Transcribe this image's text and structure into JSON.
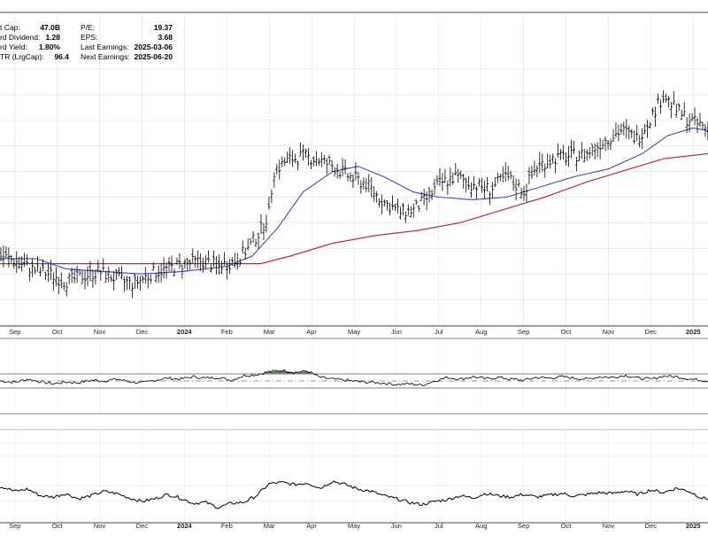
{
  "stats_left": [
    {
      "label": "t Cap:",
      "value": "47.0B"
    },
    {
      "label": "rd Dividend:",
      "value": "1.28"
    },
    {
      "label": "rd Yield:",
      "value": "1.80%"
    },
    {
      "label": "TR (LrgCap):",
      "value": "96.4"
    }
  ],
  "stats_right": [
    {
      "label": "P/E:",
      "value": "19.37"
    },
    {
      "label": "EPS:",
      "value": "3.68"
    },
    {
      "label": "Last Earnings:",
      "value": "2025-03-06"
    },
    {
      "label": "Next Earnings:",
      "value": "2025-06-20"
    }
  ],
  "chart_data": [
    {
      "type": "ohlc",
      "x_tick_labels": [
        "Sep",
        "Oct",
        "Nov",
        "Dec",
        "2024",
        "Feb",
        "Mar",
        "Apr",
        "May",
        "Jun",
        "Jul",
        "Aug",
        "Sep",
        "Oct",
        "Nov",
        "Dec",
        "2025"
      ],
      "x_tick_positions_month_index": [
        0,
        1,
        2,
        3,
        4,
        5,
        6,
        7,
        8,
        9,
        10,
        11,
        12,
        13,
        14,
        15,
        16
      ],
      "x_range_months": [
        -0.35,
        16.35
      ],
      "y_range": [
        0,
        100
      ],
      "price_relative": [
        [
          -0.3,
          27
        ],
        [
          0,
          25
        ],
        [
          0.4,
          22
        ],
        [
          0.8,
          20
        ],
        [
          1.2,
          17
        ],
        [
          1.6,
          19
        ],
        [
          2.0,
          21
        ],
        [
          2.4,
          18
        ],
        [
          2.8,
          16
        ],
        [
          3.2,
          20
        ],
        [
          3.6,
          22
        ],
        [
          4.0,
          24
        ],
        [
          4.4,
          25
        ],
        [
          4.8,
          23
        ],
        [
          5.2,
          25
        ],
        [
          5.5,
          30
        ],
        [
          5.8,
          37
        ],
        [
          6.0,
          44
        ],
        [
          6.1,
          60
        ],
        [
          6.4,
          64
        ],
        [
          6.8,
          66
        ],
        [
          7.1,
          65
        ],
        [
          7.5,
          62
        ],
        [
          7.9,
          58
        ],
        [
          8.3,
          55
        ],
        [
          8.7,
          48
        ],
        [
          9.1,
          44
        ],
        [
          9.4,
          45
        ],
        [
          9.7,
          49
        ],
        [
          10.0,
          55
        ],
        [
          10.4,
          58
        ],
        [
          10.8,
          55
        ],
        [
          11.2,
          53
        ],
        [
          11.6,
          58
        ],
        [
          12.0,
          52
        ],
        [
          12.3,
          62
        ],
        [
          12.7,
          65
        ],
        [
          13.1,
          66
        ],
        [
          13.5,
          67
        ],
        [
          13.9,
          72
        ],
        [
          14.3,
          76
        ],
        [
          14.7,
          73
        ],
        [
          15.0,
          81
        ],
        [
          15.3,
          90
        ],
        [
          15.6,
          84
        ],
        [
          15.9,
          80
        ],
        [
          16.2,
          78
        ],
        [
          16.35,
          76
        ]
      ],
      "ma50_relative": [
        [
          -0.35,
          26
        ],
        [
          0.5,
          26
        ],
        [
          1.2,
          22
        ],
        [
          2.0,
          21
        ],
        [
          3.0,
          20
        ],
        [
          4.0,
          21
        ],
        [
          5.0,
          23
        ],
        [
          5.6,
          27
        ],
        [
          6.2,
          38
        ],
        [
          6.8,
          52
        ],
        [
          7.5,
          60
        ],
        [
          8.1,
          62
        ],
        [
          8.7,
          58
        ],
        [
          9.4,
          52
        ],
        [
          10.0,
          50
        ],
        [
          10.8,
          49
        ],
        [
          11.6,
          50
        ],
        [
          12.4,
          54
        ],
        [
          13.2,
          58
        ],
        [
          14.0,
          61
        ],
        [
          14.8,
          67
        ],
        [
          15.4,
          74
        ],
        [
          16.0,
          77
        ],
        [
          16.35,
          76
        ]
      ],
      "ma200_relative": [
        [
          -0.35,
          24
        ],
        [
          1.0,
          24
        ],
        [
          2.0,
          24
        ],
        [
          3.0,
          24
        ],
        [
          4.0,
          24
        ],
        [
          5.0,
          24
        ],
        [
          5.8,
          24
        ],
        [
          6.5,
          27
        ],
        [
          7.5,
          32
        ],
        [
          8.5,
          35
        ],
        [
          9.5,
          37
        ],
        [
          10.5,
          40
        ],
        [
          11.5,
          45
        ],
        [
          12.5,
          50
        ],
        [
          13.5,
          56
        ],
        [
          14.5,
          61
        ],
        [
          15.3,
          65
        ],
        [
          16.35,
          67
        ]
      ],
      "colors": {
        "price": "#000000",
        "ma50": "#3a4bb5",
        "ma200": "#b33040"
      }
    },
    {
      "type": "line",
      "panel": "oscillator",
      "x_range_months": [
        -0.35,
        16.35
      ],
      "y_range": [
        0,
        100
      ],
      "reference_levels": [
        70,
        50,
        30
      ],
      "values": [
        [
          -0.3,
          50
        ],
        [
          0,
          46
        ],
        [
          0.3,
          55
        ],
        [
          0.6,
          48
        ],
        [
          0.9,
          42
        ],
        [
          1.2,
          47
        ],
        [
          1.5,
          45
        ],
        [
          1.8,
          52
        ],
        [
          2.1,
          50
        ],
        [
          2.4,
          55
        ],
        [
          2.7,
          48
        ],
        [
          3.0,
          44
        ],
        [
          3.3,
          52
        ],
        [
          3.6,
          58
        ],
        [
          3.9,
          55
        ],
        [
          4.2,
          62
        ],
        [
          4.5,
          58
        ],
        [
          4.8,
          60
        ],
        [
          5.1,
          52
        ],
        [
          5.4,
          65
        ],
        [
          5.7,
          68
        ],
        [
          6.0,
          76
        ],
        [
          6.3,
          80
        ],
        [
          6.6,
          74
        ],
        [
          6.9,
          78
        ],
        [
          7.2,
          60
        ],
        [
          7.5,
          55
        ],
        [
          7.8,
          52
        ],
        [
          8.1,
          48
        ],
        [
          8.4,
          46
        ],
        [
          8.7,
          44
        ],
        [
          9.0,
          40
        ],
        [
          9.3,
          42
        ],
        [
          9.6,
          38
        ],
        [
          9.9,
          50
        ],
        [
          10.2,
          60
        ],
        [
          10.5,
          55
        ],
        [
          10.8,
          62
        ],
        [
          11.1,
          56
        ],
        [
          11.4,
          60
        ],
        [
          11.7,
          55
        ],
        [
          12.0,
          52
        ],
        [
          12.3,
          60
        ],
        [
          12.6,
          58
        ],
        [
          12.9,
          62
        ],
        [
          13.2,
          58
        ],
        [
          13.5,
          55
        ],
        [
          13.8,
          62
        ],
        [
          14.1,
          60
        ],
        [
          14.4,
          66
        ],
        [
          14.7,
          58
        ],
        [
          15.0,
          55
        ],
        [
          15.3,
          64
        ],
        [
          15.6,
          62
        ],
        [
          15.9,
          56
        ],
        [
          16.2,
          52
        ],
        [
          16.35,
          50
        ]
      ],
      "overbought_fill_color": "#5f8a5f"
    },
    {
      "type": "line",
      "panel": "bottom",
      "x_tick_labels": [
        "Sep",
        "Oct",
        "Nov",
        "Dec",
        "2024",
        "Feb",
        "Mar",
        "Apr",
        "May",
        "Jun",
        "Jul",
        "Aug",
        "Sep",
        "Oct",
        "Nov",
        "Dec",
        "2025"
      ],
      "x_range_months": [
        -0.35,
        16.35
      ],
      "y_range": [
        0,
        100
      ],
      "values": [
        [
          -0.3,
          65
        ],
        [
          0,
          55
        ],
        [
          0.3,
          60
        ],
        [
          0.6,
          45
        ],
        [
          0.9,
          42
        ],
        [
          1.2,
          50
        ],
        [
          1.5,
          38
        ],
        [
          1.8,
          45
        ],
        [
          2.1,
          55
        ],
        [
          2.4,
          50
        ],
        [
          2.7,
          40
        ],
        [
          3.0,
          32
        ],
        [
          3.3,
          38
        ],
        [
          3.6,
          48
        ],
        [
          3.9,
          40
        ],
        [
          4.2,
          28
        ],
        [
          4.5,
          30
        ],
        [
          4.8,
          18
        ],
        [
          5.1,
          28
        ],
        [
          5.4,
          30
        ],
        [
          5.7,
          45
        ],
        [
          6.0,
          72
        ],
        [
          6.3,
          75
        ],
        [
          6.6,
          70
        ],
        [
          6.9,
          74
        ],
        [
          7.2,
          62
        ],
        [
          7.5,
          78
        ],
        [
          7.8,
          70
        ],
        [
          8.1,
          60
        ],
        [
          8.4,
          55
        ],
        [
          8.7,
          45
        ],
        [
          9.0,
          38
        ],
        [
          9.3,
          30
        ],
        [
          9.6,
          25
        ],
        [
          9.9,
          32
        ],
        [
          10.2,
          36
        ],
        [
          10.5,
          45
        ],
        [
          10.8,
          40
        ],
        [
          11.1,
          50
        ],
        [
          11.4,
          45
        ],
        [
          11.7,
          42
        ],
        [
          12.0,
          48
        ],
        [
          12.3,
          42
        ],
        [
          12.6,
          46
        ],
        [
          12.9,
          50
        ],
        [
          13.2,
          44
        ],
        [
          13.5,
          48
        ],
        [
          13.8,
          52
        ],
        [
          14.1,
          50
        ],
        [
          14.4,
          56
        ],
        [
          14.7,
          48
        ],
        [
          15.0,
          58
        ],
        [
          15.3,
          52
        ],
        [
          15.6,
          62
        ],
        [
          15.9,
          55
        ],
        [
          16.2,
          40
        ],
        [
          16.35,
          38
        ]
      ]
    }
  ]
}
